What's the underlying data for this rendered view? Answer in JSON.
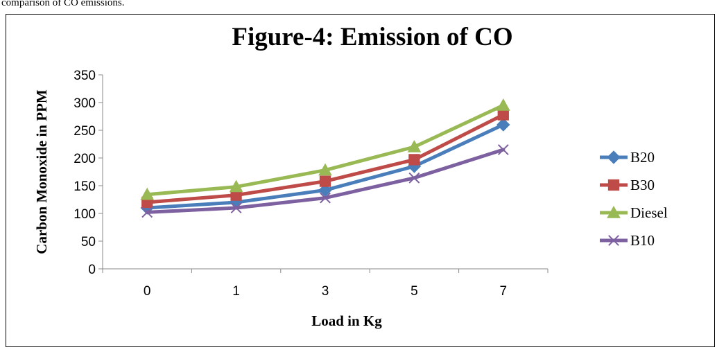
{
  "caption_fragment": "comparison of CO emissions.",
  "chart_data": {
    "type": "line",
    "title": "Figure-4: Emission of CO",
    "xlabel": "Load in Kg",
    "ylabel": "Carbon Monoxide in PPM",
    "categories": [
      "0",
      "1",
      "3",
      "5",
      "7"
    ],
    "ylim": [
      0,
      350
    ],
    "yticks": [
      0,
      50,
      100,
      150,
      200,
      250,
      300,
      350
    ],
    "grid": false,
    "legend_position": "right",
    "series": [
      {
        "name": "B20",
        "values": [
          110,
          120,
          142,
          185,
          260
        ],
        "color": "#4a7ebb",
        "marker": "diamond"
      },
      {
        "name": "B30",
        "values": [
          120,
          133,
          158,
          197,
          278
        ],
        "color": "#be4b48",
        "marker": "square"
      },
      {
        "name": "Diesel",
        "values": [
          134,
          148,
          178,
          220,
          295
        ],
        "color": "#98b954",
        "marker": "triangle"
      },
      {
        "name": "B10",
        "values": [
          102,
          110,
          128,
          164,
          215
        ],
        "color": "#7d60a0",
        "marker": "x"
      }
    ]
  }
}
